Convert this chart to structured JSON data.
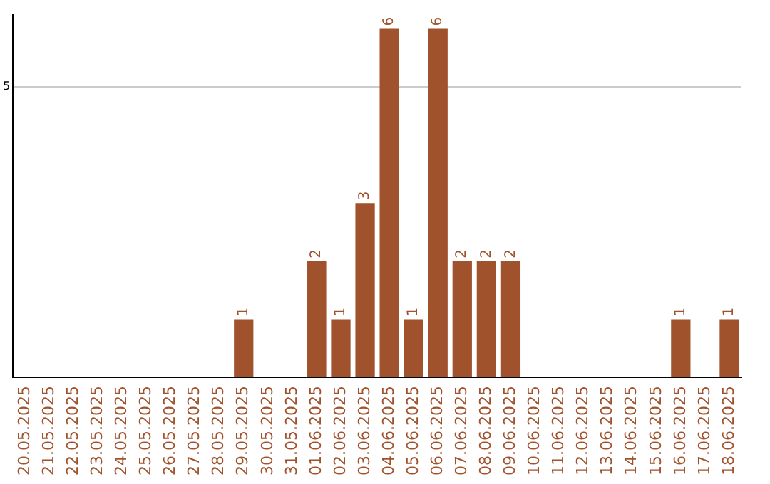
{
  "chart_data": {
    "type": "bar",
    "categories": [
      "20.05.2025",
      "21.05.2025",
      "22.05.2025",
      "23.05.2025",
      "24.05.2025",
      "25.05.2025",
      "26.05.2025",
      "27.05.2025",
      "28.05.2025",
      "29.05.2025",
      "30.05.2025",
      "31.05.2025",
      "01.06.2025",
      "02.06.2025",
      "03.06.2025",
      "04.06.2025",
      "05.06.2025",
      "06.06.2025",
      "07.06.2025",
      "08.06.2025",
      "09.06.2025",
      "10.06.2025",
      "11.06.2025",
      "12.06.2025",
      "13.06.2025",
      "14.06.2025",
      "15.06.2025",
      "16.06.2025",
      "17.06.2025",
      "18.06.2025"
    ],
    "values": [
      0,
      0,
      0,
      0,
      0,
      0,
      0,
      0,
      0,
      1,
      0,
      0,
      2,
      1,
      3,
      6,
      1,
      6,
      2,
      2,
      2,
      0,
      0,
      0,
      0,
      0,
      0,
      1,
      0,
      1
    ],
    "value_labels": [
      null,
      null,
      null,
      null,
      null,
      null,
      null,
      null,
      null,
      "1",
      null,
      null,
      "2",
      "1",
      "3",
      "6",
      "1",
      "6",
      "2",
      "2",
      "2",
      null,
      null,
      null,
      null,
      null,
      null,
      "1",
      null,
      "1"
    ],
    "color": "#a0522d",
    "ylim": [
      0,
      6.25
    ],
    "yticks": [
      5
    ],
    "grid": "y",
    "legend": false
  }
}
